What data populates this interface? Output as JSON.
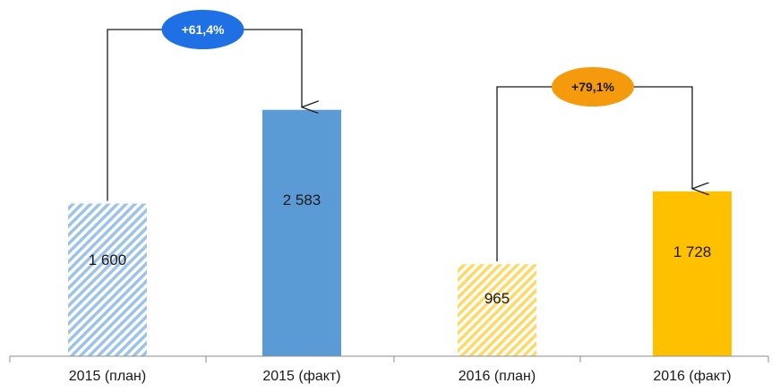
{
  "chart_data": {
    "type": "bar",
    "categories": [
      "2015 (план)",
      "2015 (факт)",
      "2016 (план)",
      "2016 (факт)"
    ],
    "values": [
      1600,
      2583,
      965,
      1728
    ],
    "value_labels": [
      "1 600",
      "2 583",
      "965",
      "1 728"
    ],
    "ylim": [
      0,
      3500
    ],
    "grid": false,
    "bar_styles": [
      {
        "color": "#9dc3e6",
        "pattern": "hatched"
      },
      {
        "color": "#5b9bd5",
        "pattern": "solid"
      },
      {
        "color": "#ffd966",
        "pattern": "hatched"
      },
      {
        "color": "#ffc000",
        "pattern": "solid"
      }
    ],
    "annotations": [
      {
        "from": 0,
        "to": 1,
        "text": "+61,4%",
        "badge_color": "#1f6fe5",
        "text_color": "#ffffff"
      },
      {
        "from": 2,
        "to": 3,
        "text": "+79,1%",
        "badge_color": "#f59a0c",
        "text_color": "#1a1a1a"
      }
    ]
  }
}
